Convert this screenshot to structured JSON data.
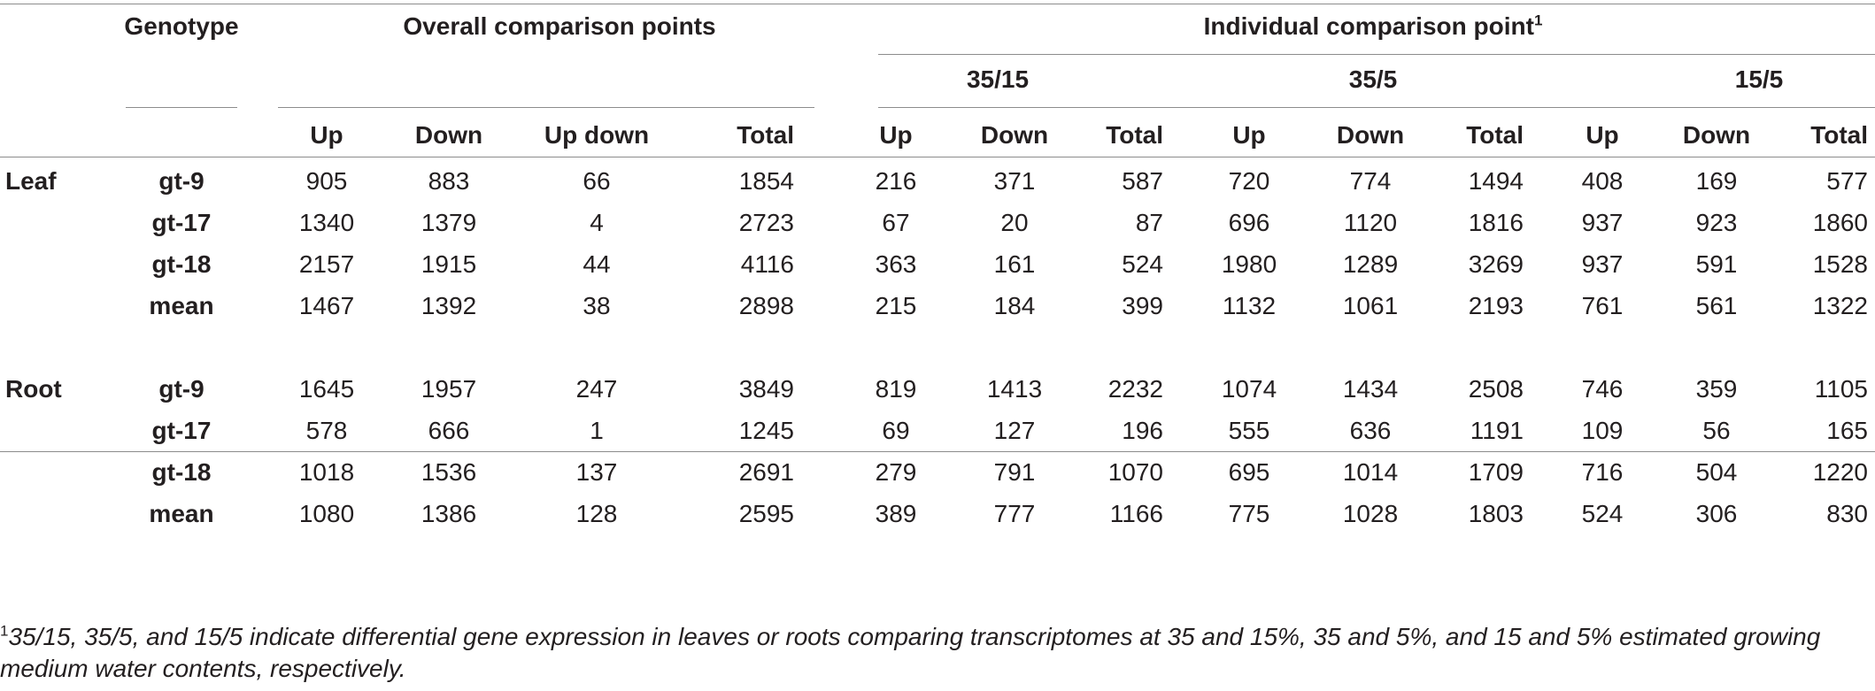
{
  "header": {
    "genotype": "Genotype",
    "overall": "Overall comparison points",
    "individual": "Individual comparison point",
    "individual_sup": "1",
    "groups": [
      "35/15",
      "35/5",
      "15/5"
    ],
    "overall_cols": [
      "Up",
      "Down",
      "Up down",
      "Total"
    ],
    "group_cols": [
      "Up",
      "Down",
      "Total"
    ]
  },
  "sections": [
    {
      "tissue": "Leaf",
      "rows": [
        {
          "genotype": "gt-9",
          "values": [
            "905",
            "883",
            "66",
            "1854",
            "216",
            "371",
            "587",
            "720",
            "774",
            "1494",
            "408",
            "169",
            "577"
          ]
        },
        {
          "genotype": "gt-17",
          "values": [
            "1340",
            "1379",
            "4",
            "2723",
            "67",
            "20",
            "87",
            "696",
            "1120",
            "1816",
            "937",
            "923",
            "1860"
          ]
        },
        {
          "genotype": "gt-18",
          "values": [
            "2157",
            "1915",
            "44",
            "4116",
            "363",
            "161",
            "524",
            "1980",
            "1289",
            "3269",
            "937",
            "591",
            "1528"
          ]
        },
        {
          "genotype": "mean",
          "values": [
            "1467",
            "1392",
            "38",
            "2898",
            "215",
            "184",
            "399",
            "1132",
            "1061",
            "2193",
            "761",
            "561",
            "1322"
          ]
        }
      ]
    },
    {
      "tissue": "Root",
      "rows": [
        {
          "genotype": "gt-9",
          "values": [
            "1645",
            "1957",
            "247",
            "3849",
            "819",
            "1413",
            "2232",
            "1074",
            "1434",
            "2508",
            "746",
            "359",
            "1105"
          ]
        },
        {
          "genotype": "gt-17",
          "values": [
            "578",
            "666",
            "1",
            "1245",
            "69",
            "127",
            "196",
            "555",
            "636",
            "1191",
            "109",
            "56",
            "165"
          ]
        },
        {
          "genotype": "gt-18",
          "values": [
            "1018",
            "1536",
            "137",
            "2691",
            "279",
            "791",
            "1070",
            "695",
            "1014",
            "1709",
            "716",
            "504",
            "1220"
          ]
        },
        {
          "genotype": "mean",
          "values": [
            "1080",
            "1386",
            "128",
            "2595",
            "389",
            "777",
            "1166",
            "775",
            "1028",
            "1803",
            "524",
            "306",
            "830"
          ]
        }
      ]
    }
  ],
  "footnote": {
    "marker": "1",
    "line1": "35/15, 35/5, and 15/5 indicate differential gene expression in leaves or roots comparing transcriptomes at 35 and 15%, 35 and 5%, and 15 and 5% estimated growing",
    "line2": "medium water contents, respectively."
  }
}
